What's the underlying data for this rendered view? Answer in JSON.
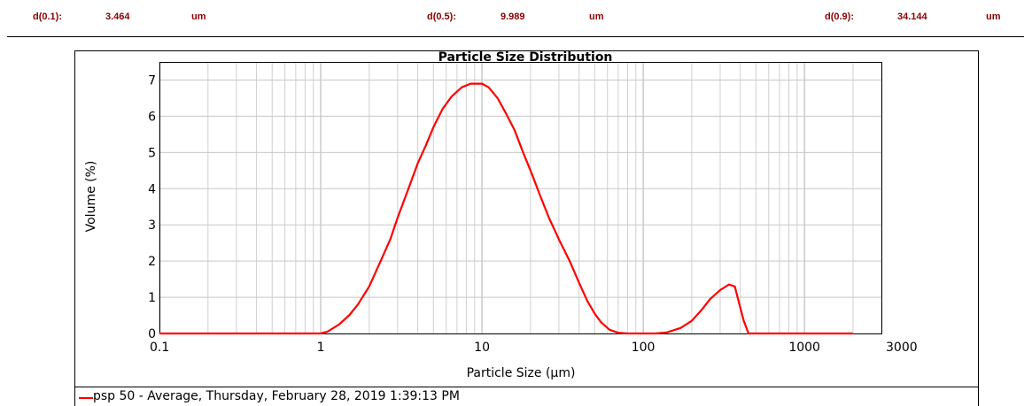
{
  "stats": [
    {
      "label": "d(0.1):",
      "value": "3.464",
      "unit": "um"
    },
    {
      "label": "d(0.5):",
      "value": "9.989",
      "unit": "um"
    },
    {
      "label": "d(0.9):",
      "value": "34.144",
      "unit": "um"
    }
  ],
  "legend": {
    "label": "psp 50 - Average, Thursday, February 28, 2019 1:39:13 PM",
    "color": "#ff0000"
  },
  "chart_data": {
    "type": "line",
    "title": "Particle Size Distribution",
    "xlabel": "Particle Size (μm)",
    "ylabel": "Volume (%)",
    "x_scale": "log",
    "xlim": [
      0.1,
      3000
    ],
    "ylim": [
      0,
      7.5
    ],
    "grid": true,
    "x_ticks": [
      {
        "value": 0.1,
        "label": "0.1"
      },
      {
        "value": 1,
        "label": "1"
      },
      {
        "value": 10,
        "label": "10"
      },
      {
        "value": 100,
        "label": "100"
      },
      {
        "value": 1000,
        "label": "1000"
      },
      {
        "value": 3000,
        "label": "3000"
      }
    ],
    "y_ticks": [
      {
        "value": 0,
        "label": "0"
      },
      {
        "value": 1,
        "label": "1"
      },
      {
        "value": 2,
        "label": "2"
      },
      {
        "value": 3,
        "label": "3"
      },
      {
        "value": 4,
        "label": "4"
      },
      {
        "value": 5,
        "label": "5"
      },
      {
        "value": 6,
        "label": "6"
      },
      {
        "value": 7,
        "label": "7"
      }
    ],
    "series": [
      {
        "name": "psp 50 - Average, Thursday, February 28, 2019 1:39:13 PM",
        "color": "#ff0000",
        "points": [
          [
            0.1,
            0
          ],
          [
            0.5,
            0
          ],
          [
            1.0,
            0
          ],
          [
            1.1,
            0.05
          ],
          [
            1.3,
            0.25
          ],
          [
            1.5,
            0.5
          ],
          [
            1.7,
            0.8
          ],
          [
            2.0,
            1.3
          ],
          [
            2.3,
            1.9
          ],
          [
            2.7,
            2.6
          ],
          [
            3.0,
            3.2
          ],
          [
            3.5,
            4.0
          ],
          [
            4.0,
            4.7
          ],
          [
            4.5,
            5.2
          ],
          [
            5.0,
            5.7
          ],
          [
            5.7,
            6.2
          ],
          [
            6.5,
            6.55
          ],
          [
            7.5,
            6.8
          ],
          [
            8.5,
            6.9
          ],
          [
            10.0,
            6.9
          ],
          [
            11.0,
            6.8
          ],
          [
            12.5,
            6.5
          ],
          [
            14.0,
            6.1
          ],
          [
            16.0,
            5.6
          ],
          [
            18.0,
            5.0
          ],
          [
            20.0,
            4.5
          ],
          [
            23.0,
            3.8
          ],
          [
            26.0,
            3.2
          ],
          [
            30.0,
            2.6
          ],
          [
            35.0,
            2.0
          ],
          [
            40.0,
            1.4
          ],
          [
            45.0,
            0.9
          ],
          [
            50.0,
            0.55
          ],
          [
            55.0,
            0.3
          ],
          [
            62.0,
            0.1
          ],
          [
            70.0,
            0.02
          ],
          [
            80.0,
            0
          ],
          [
            120.0,
            0
          ],
          [
            140.0,
            0.03
          ],
          [
            170.0,
            0.15
          ],
          [
            200.0,
            0.35
          ],
          [
            230.0,
            0.65
          ],
          [
            260.0,
            0.95
          ],
          [
            300.0,
            1.2
          ],
          [
            340.0,
            1.35
          ],
          [
            370.0,
            1.3
          ],
          [
            390.0,
            0.9
          ],
          [
            420.0,
            0.35
          ],
          [
            450.0,
            0
          ],
          [
            600.0,
            0
          ],
          [
            2000.0,
            0
          ]
        ]
      }
    ]
  }
}
